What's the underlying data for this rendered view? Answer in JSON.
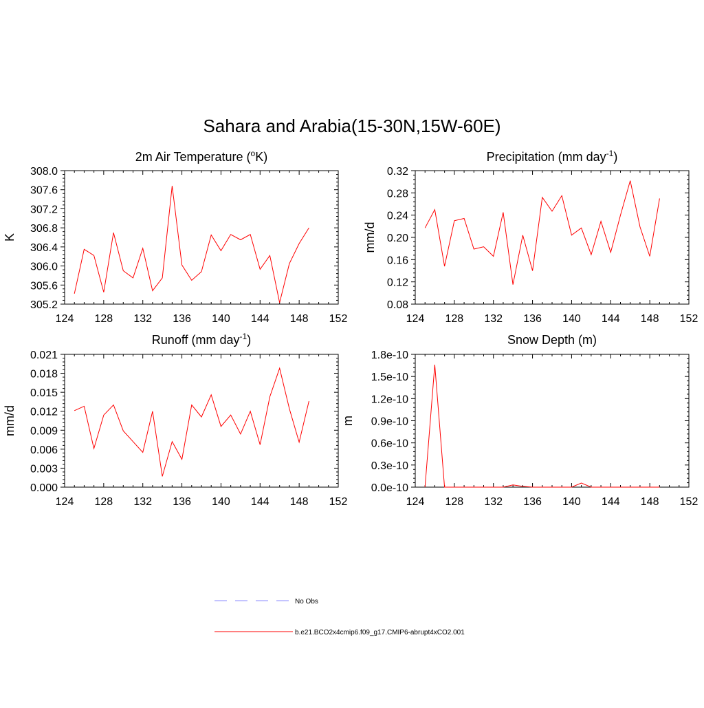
{
  "title": "Sahara and Arabia(15-30N,15W-60E)",
  "colors": {
    "model": "#ff0000",
    "obs": "#8a8aff"
  },
  "legend": [
    {
      "label": "No Obs",
      "style": "dashed",
      "color": "#8a8aff"
    },
    {
      "label": "b.e21.BCO2x4cmip6.f09_g17.CMIP6-abrupt4xCO2.001",
      "style": "solid",
      "color": "#ff0000"
    }
  ],
  "chart_data": [
    {
      "type": "line",
      "title": "2m Air Temperature (",
      "title_sup": "o",
      "title_end": "K)",
      "ylabel": "K",
      "xlim": [
        124,
        152
      ],
      "ylim": [
        305.2,
        308.0
      ],
      "x_ticks": [
        "124",
        "128",
        "132",
        "136",
        "140",
        "144",
        "148",
        "152"
      ],
      "y_ticks": [
        "305.2",
        "305.6",
        "306.0",
        "306.4",
        "306.8",
        "307.2",
        "307.6",
        "308.0"
      ],
      "y_minor_step": 0.08,
      "x": [
        125,
        126,
        127,
        128,
        129,
        130,
        131,
        132,
        133,
        134,
        135,
        136,
        137,
        138,
        139,
        140,
        141,
        142,
        143,
        144,
        145,
        146,
        147,
        148,
        149
      ],
      "series": [
        {
          "values": [
            305.42,
            306.35,
            306.22,
            305.45,
            306.7,
            305.9,
            305.75,
            306.37,
            305.48,
            305.75,
            307.68,
            306.02,
            305.7,
            305.88,
            306.65,
            306.32,
            306.66,
            306.55,
            306.66,
            305.93,
            306.22,
            305.23,
            306.05,
            306.47,
            306.8
          ]
        }
      ]
    },
    {
      "type": "line",
      "title": "Precipitation (mm day",
      "title_sup": "-1",
      "title_end": ")",
      "ylabel": "mm/d",
      "xlim": [
        124,
        152
      ],
      "ylim": [
        0.08,
        0.32
      ],
      "x_ticks": [
        "124",
        "128",
        "132",
        "136",
        "140",
        "144",
        "148",
        "152"
      ],
      "y_ticks": [
        "0.08",
        "0.12",
        "0.16",
        "0.20",
        "0.24",
        "0.28",
        "0.32"
      ],
      "y_minor_step": 0.008,
      "x": [
        125,
        126,
        127,
        128,
        129,
        130,
        131,
        132,
        133,
        134,
        135,
        136,
        137,
        138,
        139,
        140,
        141,
        142,
        143,
        144,
        145,
        146,
        147,
        148,
        149
      ],
      "series": [
        {
          "values": [
            0.217,
            0.25,
            0.148,
            0.23,
            0.234,
            0.179,
            0.183,
            0.166,
            0.245,
            0.115,
            0.204,
            0.14,
            0.272,
            0.247,
            0.275,
            0.204,
            0.217,
            0.169,
            0.229,
            0.173,
            0.24,
            0.302,
            0.219,
            0.166,
            0.27
          ]
        }
      ]
    },
    {
      "type": "line",
      "title": "Runoff (mm day",
      "title_sup": "-1",
      "title_end": ")",
      "ylabel": "mm/d",
      "xlim": [
        124,
        152
      ],
      "ylim": [
        0.0,
        0.021
      ],
      "x_ticks": [
        "124",
        "128",
        "132",
        "136",
        "140",
        "144",
        "148",
        "152"
      ],
      "y_ticks": [
        "0.000",
        "0.003",
        "0.006",
        "0.009",
        "0.012",
        "0.015",
        "0.018",
        "0.021"
      ],
      "y_minor_step": 0.0006,
      "x": [
        125,
        126,
        127,
        128,
        129,
        130,
        131,
        132,
        133,
        134,
        135,
        136,
        137,
        138,
        139,
        140,
        141,
        142,
        143,
        144,
        145,
        146,
        147,
        148,
        149
      ],
      "series": [
        {
          "values": [
            0.0121,
            0.0128,
            0.0061,
            0.0114,
            0.013,
            0.0089,
            0.0072,
            0.0055,
            0.012,
            0.0017,
            0.0072,
            0.0044,
            0.013,
            0.0111,
            0.0146,
            0.0096,
            0.0114,
            0.0084,
            0.012,
            0.0067,
            0.0143,
            0.0188,
            0.0124,
            0.0071,
            0.0136
          ]
        }
      ]
    },
    {
      "type": "line",
      "title": "Snow Depth (m)",
      "title_sup": "",
      "title_end": "",
      "ylabel": "m",
      "xlim": [
        124,
        152
      ],
      "ylim": [
        0.0,
        1.8e-10
      ],
      "x_ticks": [
        "124",
        "128",
        "132",
        "136",
        "140",
        "144",
        "148",
        "152"
      ],
      "y_ticks": [
        "0.0e-10",
        "0.3e-10",
        "0.6e-10",
        "0.9e-10",
        "1.2e-10",
        "1.5e-10",
        "1.8e-10"
      ],
      "y_minor_step": 6e-12,
      "x": [
        125,
        126,
        127,
        128,
        129,
        130,
        131,
        132,
        133,
        134,
        135,
        136,
        137,
        138,
        139,
        140,
        141,
        142,
        143,
        144,
        145,
        146,
        147,
        148,
        149
      ],
      "series": [
        {
          "values": [
            0,
            1.66e-10,
            0,
            0,
            0,
            0,
            0,
            0,
            0,
            3e-12,
            1e-12,
            0,
            0,
            0,
            0,
            0,
            5.5e-12,
            0,
            0,
            0,
            0,
            0,
            0,
            0,
            0
          ]
        }
      ]
    }
  ]
}
